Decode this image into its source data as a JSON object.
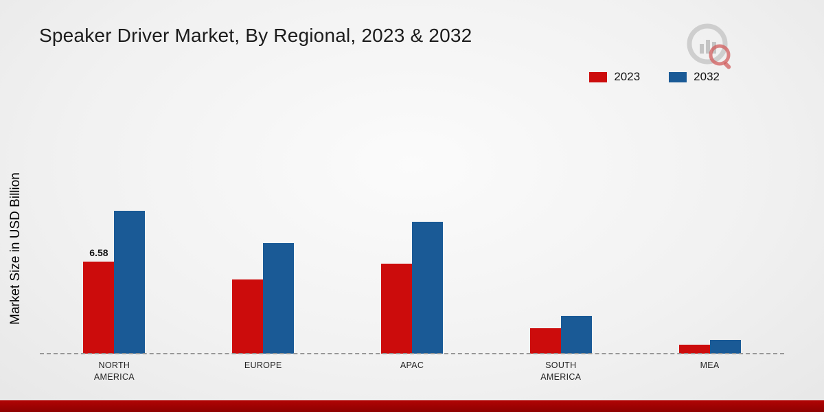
{
  "page": {
    "title": "Speaker Driver Market, By Regional, 2023 & 2032"
  },
  "chart_data": {
    "type": "bar",
    "title": "Speaker Driver Market, By Regional, 2023 & 2032",
    "xlabel": "",
    "ylabel": "Market Size in USD Billion",
    "categories": [
      "NORTH AMERICA",
      "EUROPE",
      "APAC",
      "SOUTH AMERICA",
      "MEA"
    ],
    "series": [
      {
        "name": "2023",
        "color": "#cc0c0c",
        "values": [
          6.58,
          5.3,
          6.4,
          1.8,
          0.65
        ],
        "value_labels": [
          "6.58",
          "",
          "",
          "",
          ""
        ]
      },
      {
        "name": "2032",
        "color": "#1a5a96",
        "values": [
          10.2,
          7.9,
          9.4,
          2.7,
          1.0
        ],
        "value_labels": [
          "",
          "",
          "",
          "",
          ""
        ]
      }
    ],
    "ylim": [
      0,
      12.7
    ],
    "grid": "off",
    "baseline_style": "dashed",
    "legend_position": "top-right",
    "annotations": [
      {
        "category": "NORTH AMERICA",
        "series": "2023",
        "text": "6.58"
      }
    ]
  },
  "footer": {
    "band_color": "#b00404"
  }
}
